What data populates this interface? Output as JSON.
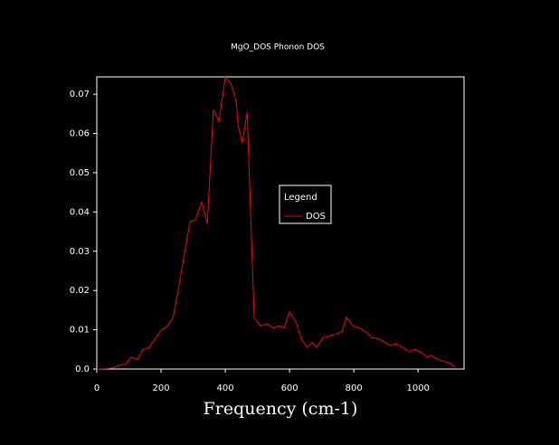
{
  "chart_data": {
    "type": "line",
    "title": "MgO_DOS Phonon DOS",
    "x_label": "Frequency (cm-1)",
    "x": [
      0,
      31,
      51,
      70,
      90,
      107,
      127,
      144,
      163,
      180,
      200,
      220,
      237,
      253,
      270,
      290,
      307,
      327,
      344,
      363,
      380,
      400,
      417,
      434,
      440,
      453,
      468,
      490,
      510,
      530,
      549,
      569,
      583,
      600,
      620,
      637,
      656,
      670,
      685,
      704,
      727,
      746,
      763,
      777,
      797,
      817,
      837,
      856,
      876,
      896,
      915,
      932,
      952,
      972,
      992,
      1011,
      1028,
      1040,
      1059,
      1079,
      1099,
      1115
    ],
    "series": [
      {
        "name": "DOS",
        "color": "#ff0000",
        "values": [
          0,
          0.0001,
          0.0003,
          0.001,
          0.0012,
          0.003,
          0.0025,
          0.005,
          0.0055,
          0.0075,
          0.0098,
          0.011,
          0.013,
          0.02,
          0.028,
          0.0375,
          0.038,
          0.0425,
          0.037,
          0.066,
          0.063,
          0.0743,
          0.0728,
          0.068,
          0.062,
          0.0575,
          0.0655,
          0.013,
          0.011,
          0.0115,
          0.0105,
          0.011,
          0.0105,
          0.0145,
          0.012,
          0.0075,
          0.0055,
          0.0068,
          0.0055,
          0.008,
          0.0085,
          0.009,
          0.0095,
          0.0132,
          0.011,
          0.0105,
          0.0095,
          0.008,
          0.0078,
          0.0068,
          0.006,
          0.0065,
          0.0055,
          0.0045,
          0.005,
          0.0042,
          0.003,
          0.0035,
          0.0025,
          0.002,
          0.0015,
          0.0005
        ]
      }
    ],
    "xlim": [
      0,
      1143
    ],
    "ylim": [
      0,
      0.0744
    ],
    "xticks": [
      0,
      200,
      400,
      600,
      800,
      1000
    ],
    "yticks": [
      {
        "value": 0,
        "label": "0.0"
      },
      0.01,
      0.02,
      0.03,
      0.04,
      0.05,
      0.06,
      0.07
    ],
    "legend_title": "Legend",
    "legend_position": "center-right"
  }
}
